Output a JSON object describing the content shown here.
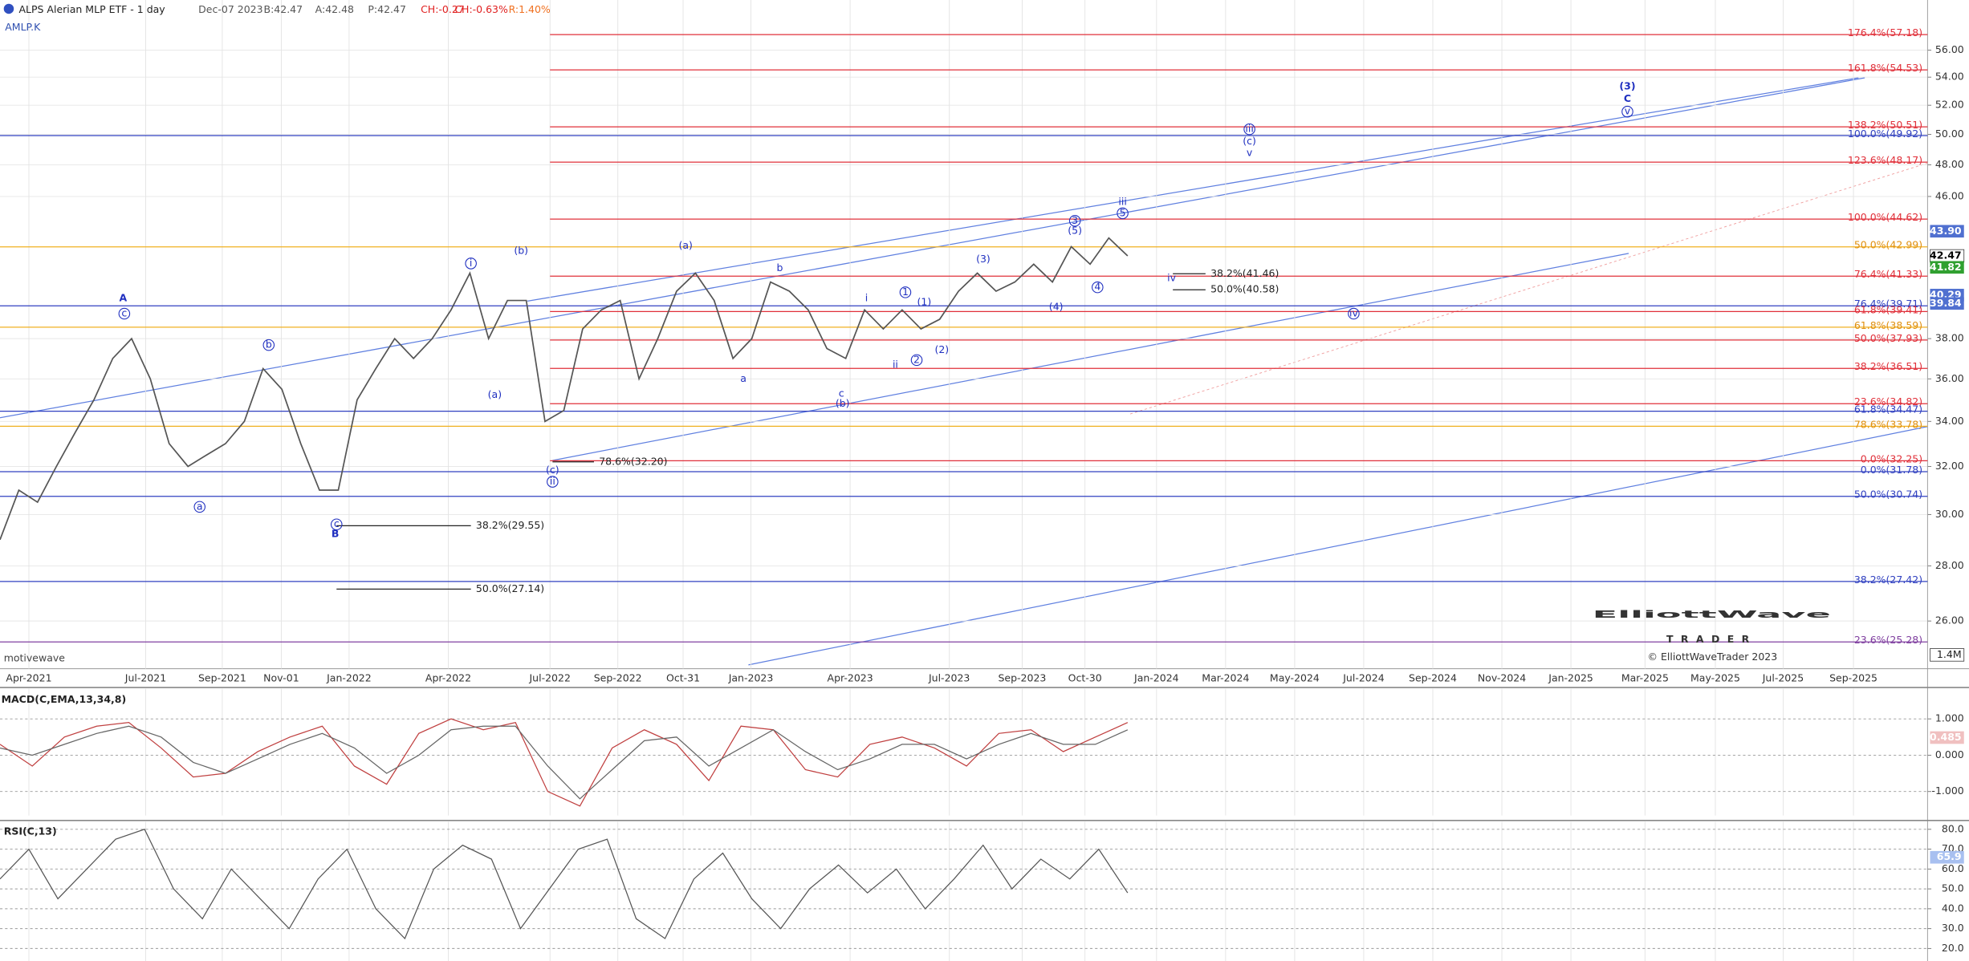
{
  "header": {
    "title": "ALPS Alerian MLP ETF - 1 day",
    "date": "Dec-07 2023",
    "bid": "B:42.47",
    "ask": "A:42.48",
    "price": "P:42.47",
    "change": "CH:-0.27",
    "change_pct": "CH:-0.63%",
    "range": "R:1.40%",
    "symbol": "AMLP.K"
  },
  "watermark": "motivewave",
  "logo": {
    "line1": "ElliottWave",
    "line2": "TRADER",
    "copyright": "© ElliottWaveTrader 2023"
  },
  "chart_data": [
    {
      "type": "line",
      "log_scale": true,
      "grid": true,
      "x_labels": [
        "Apr-2021",
        "Jul-2021",
        "Sep-2021",
        "Nov-01",
        "Jan-2022",
        "Apr-2022",
        "Jul-2022",
        "Sep-2022",
        "Oct-31",
        "Jan-2023",
        "Apr-2023",
        "Jul-2023",
        "Sep-2023",
        "Oct-30",
        "Jan-2024",
        "Mar-2024",
        "May-2024",
        "Jul-2024",
        "Sep-2024",
        "Nov-2024",
        "Jan-2025",
        "Mar-2025",
        "May-2025",
        "Jul-2025",
        "Sep-2025"
      ],
      "series": [
        {
          "color": "#555555",
          "values": [
            29,
            31,
            30.5,
            32,
            33.5,
            35,
            37,
            38,
            36,
            33,
            32,
            32.5,
            33,
            34,
            36.5,
            35.5,
            33,
            31,
            31,
            35,
            36.5,
            38,
            37,
            38,
            39.5,
            41.5,
            38,
            40,
            40,
            34,
            34.5,
            38.5,
            39.5,
            40,
            36,
            38,
            40.5,
            41.5,
            40,
            37,
            38,
            41,
            40.5,
            39.5,
            37.5,
            37,
            39.5,
            38.5,
            39.5,
            38.5,
            39,
            40.5,
            41.5,
            40.5,
            41,
            42,
            41,
            43,
            42,
            43.5,
            42.47
          ]
        }
      ],
      "ylim": [
        24.1,
        59.9
      ],
      "yticks": [
        {
          "value": 26,
          "label": "26.00"
        },
        {
          "value": 28,
          "label": "28.00"
        },
        {
          "value": 30,
          "label": "30.00"
        },
        {
          "value": 32,
          "label": "32.00"
        },
        {
          "value": 34,
          "label": "34.00"
        },
        {
          "value": 36,
          "label": "36.00"
        },
        {
          "value": 38,
          "label": "38.00"
        },
        {
          "value": 46,
          "label": "46.00"
        },
        {
          "value": 48,
          "label": "48.00"
        },
        {
          "value": 50,
          "label": "50.00"
        },
        {
          "value": 52,
          "label": "52.00"
        },
        {
          "value": 54,
          "label": "54.00"
        },
        {
          "value": 56,
          "label": "56.00"
        }
      ],
      "price_tags": [
        {
          "value": 43.9,
          "label": "43.90",
          "color": "#5070d0"
        },
        {
          "value": 42.47,
          "label": "42.47",
          "color": "#ffffff"
        },
        {
          "value": 41.82,
          "label": "41.82",
          "color": "#30a030"
        },
        {
          "value": 40.29,
          "label": "40.29",
          "color": "#5070d0"
        },
        {
          "value": 39.84,
          "label": "39.84",
          "color": "#5070d0"
        }
      ],
      "fib_levels": [
        {
          "label": "176.4%(57.18)",
          "value": 57.18,
          "color": "#e0303a"
        },
        {
          "label": "161.8%(54.53)",
          "value": 54.53,
          "color": "#e0303a"
        },
        {
          "label": "138.2%(50.51)",
          "value": 50.51,
          "color": "#e0303a"
        },
        {
          "label": "100.0%(49.92)",
          "value": 49.92,
          "color": "#3040c0"
        },
        {
          "label": "123.6%(48.17)",
          "value": 48.17,
          "color": "#e0303a"
        },
        {
          "label": "100.0%(44.62)",
          "value": 44.62,
          "color": "#e0303a"
        },
        {
          "label": "50.0%(42.99)",
          "value": 42.99,
          "color": "#f0b020"
        },
        {
          "label": "76.4%(41.33)",
          "value": 41.33,
          "color": "#e0303a"
        },
        {
          "label": "76.4%(39.71)",
          "value": 39.71,
          "color": "#3040c0"
        },
        {
          "label": "61.8%(39.41)",
          "value": 39.41,
          "color": "#e0303a"
        },
        {
          "label": "61.8%(38.59)",
          "value": 38.59,
          "color": "#f0b020"
        },
        {
          "label": "50.0%(37.93)",
          "value": 37.93,
          "color": "#e0303a"
        },
        {
          "label": "38.2%(36.51)",
          "value": 36.51,
          "color": "#e0303a"
        },
        {
          "label": "23.6%(34.82)",
          "value": 34.82,
          "color": "#e0303a"
        },
        {
          "label": "61.8%(34.47)",
          "value": 34.47,
          "color": "#3040c0"
        },
        {
          "label": "78.6%(33.78)",
          "value": 33.78,
          "color": "#f0b020"
        },
        {
          "label": "0.0%(32.25)",
          "value": 32.25,
          "color": "#e0303a"
        },
        {
          "label": "0.0%(31.78)",
          "value": 31.78,
          "color": "#3040c0"
        },
        {
          "label": "50.0%(30.74)",
          "value": 30.74,
          "color": "#3040c0"
        },
        {
          "label": "38.2%(27.42)",
          "value": 27.42,
          "color": "#3040c0"
        },
        {
          "label": "23.6%(25.28)",
          "value": 25.28,
          "color": "#8040a0"
        }
      ],
      "annotations": [
        {
          "label": "38.2%(29.55)",
          "value": 29.55
        },
        {
          "label": "50.0%(27.14)",
          "value": 27.14
        },
        {
          "label": "78.6%(32.20)",
          "value": 32.2
        },
        {
          "label": "38.2%(41.46)",
          "value": 41.46
        },
        {
          "label": "50.0%(40.58)",
          "value": 40.58
        }
      ],
      "wave_labels": [
        "A",
        "c",
        "a",
        "b",
        "c",
        "B",
        "i",
        "(a)",
        "(b)",
        "(c)",
        "ii",
        "(a)",
        "b",
        "a",
        "c",
        "(b)",
        "i",
        "1",
        "(1)",
        "ii",
        "2",
        "(2)",
        "(3)",
        "(4)",
        "3",
        "(5)",
        "4",
        "5",
        "iii",
        "iv",
        "iii",
        "(c)",
        "v",
        "iv",
        "(3)",
        "C",
        "v"
      ],
      "volume_label": "1.4M"
    },
    {
      "type": "line",
      "title": "MACD(C,EMA,13,34,8)",
      "series": [
        {
          "color": "#c04040",
          "values": [
            0.3,
            -0.3,
            0.5,
            0.8,
            0.9,
            0.2,
            -0.6,
            -0.5,
            0.1,
            0.5,
            0.8,
            -0.3,
            -0.8,
            0.6,
            1.0,
            0.7,
            0.9,
            -1.0,
            -1.4,
            0.2,
            0.7,
            0.3,
            -0.7,
            0.8,
            0.7,
            -0.4,
            -0.6,
            0.3,
            0.5,
            0.2,
            -0.3,
            0.6,
            0.7,
            0.1,
            0.5,
            0.9
          ]
        },
        {
          "color": "#666666",
          "values": [
            0.2,
            0,
            0.3,
            0.6,
            0.8,
            0.5,
            -0.2,
            -0.5,
            -0.1,
            0.3,
            0.6,
            0.2,
            -0.5,
            0,
            0.7,
            0.8,
            0.8,
            -0.3,
            -1.2,
            -0.4,
            0.4,
            0.5,
            -0.3,
            0.2,
            0.7,
            0.1,
            -0.4,
            -0.1,
            0.3,
            0.3,
            -0.1,
            0.3,
            0.6,
            0.3,
            0.3,
            0.7
          ]
        }
      ],
      "ylim": [
        -1.66,
        1.83
      ],
      "yticks": [
        {
          "value": 1,
          "label": "1.000"
        },
        {
          "value": 0,
          "label": "0.000"
        },
        {
          "value": -1,
          "label": "-1.000"
        }
      ],
      "price_tags": [
        {
          "value": 0.485,
          "label": "0.485",
          "color": "#f0c0c0"
        }
      ]
    },
    {
      "type": "line",
      "title": "RSI(C,13)",
      "series": [
        {
          "color": "#555555",
          "values": [
            55,
            70,
            45,
            60,
            75,
            80,
            50,
            35,
            60,
            45,
            30,
            55,
            70,
            40,
            25,
            60,
            72,
            65,
            30,
            50,
            70,
            75,
            35,
            25,
            55,
            68,
            45,
            30,
            50,
            62,
            48,
            60,
            40,
            55,
            72,
            50,
            65,
            55,
            70,
            48
          ]
        }
      ],
      "ylim": [
        13.7,
        83.8
      ],
      "yticks": [
        {
          "value": 20,
          "label": "20.0"
        },
        {
          "value": 30,
          "label": "30.0"
        },
        {
          "value": 40,
          "label": "40.0"
        },
        {
          "value": 50,
          "label": "50.0"
        },
        {
          "value": 60,
          "label": "60.0"
        },
        {
          "value": 70,
          "label": "70.0"
        },
        {
          "value": 80,
          "label": "80.0"
        }
      ],
      "price_tags": [
        {
          "value": 65.9,
          "label": "65.9",
          "color": "#a8c0f0"
        }
      ]
    }
  ]
}
